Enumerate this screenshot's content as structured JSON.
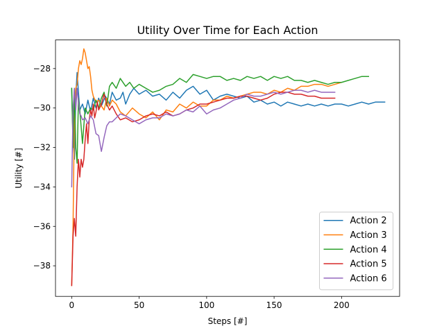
{
  "chart_data": {
    "type": "line",
    "title": "Utility Over Time for Each Action",
    "xlabel": "Steps [#]",
    "ylabel": "Utility [#]",
    "xlim": [
      -12,
      243
    ],
    "ylim": [
      -39.55,
      -26.55
    ],
    "xticks": [
      0,
      50,
      100,
      150,
      200
    ],
    "yticks": [
      -38,
      -36,
      -34,
      -32,
      -30,
      -28
    ],
    "grid": false,
    "legend_position": "lower right",
    "series": [
      {
        "name": "Action 2",
        "color": "#1f77b4",
        "x": [
          0,
          1,
          2,
          3,
          4,
          5,
          6,
          8,
          10,
          12,
          14,
          16,
          18,
          20,
          22,
          25,
          28,
          30,
          33,
          36,
          38,
          40,
          43,
          46,
          50,
          55,
          60,
          65,
          70,
          75,
          80,
          85,
          90,
          95,
          100,
          105,
          110,
          115,
          120,
          125,
          130,
          135,
          140,
          145,
          150,
          155,
          160,
          165,
          170,
          175,
          180,
          185,
          190,
          195,
          200,
          205,
          210,
          215,
          220,
          225,
          230,
          232
        ],
        "y": [
          -29,
          -31.6,
          -32.6,
          -29.4,
          -28.2,
          -29.2,
          -30.1,
          -29.8,
          -30.3,
          -29.6,
          -30.2,
          -29.5,
          -30.0,
          -29.5,
          -29.9,
          -29.4,
          -29.8,
          -29.2,
          -29.6,
          -29.5,
          -29.2,
          -29.8,
          -29.3,
          -29.0,
          -29.3,
          -29.1,
          -29.4,
          -29.3,
          -29.6,
          -29.2,
          -29.5,
          -29.1,
          -28.9,
          -29.3,
          -29.1,
          -29.6,
          -29.4,
          -29.3,
          -29.4,
          -29.5,
          -29.4,
          -29.7,
          -29.6,
          -29.8,
          -29.7,
          -29.9,
          -29.7,
          -29.8,
          -29.9,
          -29.8,
          -29.9,
          -29.8,
          -29.9,
          -29.8,
          -29.8,
          -29.9,
          -29.8,
          -29.7,
          -29.8,
          -29.7,
          -29.7,
          -29.7
        ]
      },
      {
        "name": "Action 3",
        "color": "#ff7f0e",
        "x": [
          0,
          1,
          2,
          3,
          4,
          5,
          6,
          7,
          8,
          9,
          10,
          11,
          12,
          13,
          14,
          15,
          16,
          18,
          20,
          22,
          24,
          26,
          28,
          30,
          33,
          36,
          40,
          45,
          50,
          55,
          60,
          65,
          70,
          75,
          80,
          85,
          90,
          95,
          100,
          105,
          110,
          115,
          120,
          125,
          130,
          135,
          140,
          145,
          150,
          155,
          160,
          165,
          170,
          175,
          180,
          185,
          190,
          195,
          200
        ],
        "y": [
          -39,
          -36.0,
          -30.5,
          -29.0,
          -28.8,
          -28.0,
          -27.6,
          -27.8,
          -27.5,
          -27.0,
          -27.2,
          -27.6,
          -28.0,
          -27.9,
          -28.4,
          -29.1,
          -29.4,
          -29.7,
          -29.6,
          -29.9,
          -30.1,
          -29.5,
          -29.9,
          -29.6,
          -29.8,
          -30.2,
          -30.4,
          -30.0,
          -30.3,
          -30.5,
          -30.2,
          -30.6,
          -30.1,
          -30.2,
          -29.8,
          -30.0,
          -29.7,
          -29.9,
          -29.9,
          -29.6,
          -29.6,
          -29.4,
          -29.5,
          -29.4,
          -29.3,
          -29.2,
          -29.2,
          -29.3,
          -29.1,
          -29.2,
          -29.0,
          -29.1,
          -28.9,
          -28.9,
          -28.8,
          -28.8,
          -28.9,
          -28.8,
          -28.7
        ]
      },
      {
        "name": "Action 4",
        "color": "#2ca02c",
        "x": [
          0,
          1,
          2,
          3,
          4,
          5,
          6,
          8,
          10,
          12,
          14,
          16,
          18,
          20,
          22,
          24,
          26,
          28,
          30,
          33,
          36,
          40,
          43,
          46,
          50,
          55,
          60,
          65,
          70,
          75,
          80,
          85,
          90,
          95,
          100,
          105,
          110,
          115,
          120,
          125,
          130,
          135,
          140,
          145,
          150,
          155,
          160,
          165,
          170,
          175,
          180,
          185,
          190,
          195,
          200,
          205,
          210,
          215,
          220
        ],
        "y": [
          -29,
          -32.0,
          -29.0,
          -32.0,
          -32.8,
          -29.5,
          -30.1,
          -31.8,
          -30.0,
          -30.3,
          -30.0,
          -30.1,
          -29.6,
          -30.0,
          -29.5,
          -29.2,
          -29.9,
          -28.9,
          -28.7,
          -29.0,
          -28.5,
          -28.9,
          -28.7,
          -29.0,
          -28.8,
          -29.0,
          -29.2,
          -29.1,
          -28.9,
          -28.8,
          -28.5,
          -28.7,
          -28.3,
          -28.4,
          -28.5,
          -28.4,
          -28.4,
          -28.6,
          -28.5,
          -28.6,
          -28.4,
          -28.5,
          -28.4,
          -28.6,
          -28.4,
          -28.5,
          -28.4,
          -28.6,
          -28.6,
          -28.7,
          -28.6,
          -28.7,
          -28.8,
          -28.7,
          -28.7,
          -28.6,
          -28.5,
          -28.4,
          -28.4
        ]
      },
      {
        "name": "Action 5",
        "color": "#d62728",
        "x": [
          0,
          1,
          2,
          3,
          4,
          5,
          6,
          7,
          8,
          9,
          10,
          11,
          12,
          13,
          14,
          15,
          16,
          17,
          18,
          19,
          20,
          22,
          24,
          26,
          28,
          30,
          33,
          36,
          40,
          45,
          50,
          55,
          60,
          65,
          70,
          75,
          80,
          85,
          90,
          95,
          100,
          105,
          110,
          115,
          120,
          125,
          130,
          135,
          140,
          145,
          150,
          155,
          160,
          165,
          170,
          175,
          180,
          185,
          190,
          195
        ],
        "y": [
          -39,
          -36.5,
          -35.6,
          -36.5,
          -34.0,
          -32.6,
          -33.5,
          -32.6,
          -33.0,
          -32.6,
          -31.6,
          -30.8,
          -31.8,
          -30.6,
          -30.1,
          -30.4,
          -29.8,
          -30.5,
          -30.2,
          -29.7,
          -30.1,
          -29.8,
          -29.3,
          -29.8,
          -30.1,
          -29.9,
          -30.3,
          -30.6,
          -30.5,
          -30.7,
          -30.6,
          -30.4,
          -30.3,
          -30.4,
          -30.2,
          -30.4,
          -30.3,
          -30.1,
          -30.0,
          -29.8,
          -29.8,
          -29.7,
          -29.6,
          -29.5,
          -29.5,
          -29.4,
          -29.4,
          -29.5,
          -29.6,
          -29.5,
          -29.3,
          -29.2,
          -29.2,
          -29.3,
          -29.3,
          -29.4,
          -29.4,
          -29.5,
          -29.5,
          -29.5
        ]
      },
      {
        "name": "Action 6",
        "color": "#9467bd",
        "x": [
          0,
          1,
          2,
          3,
          4,
          5,
          6,
          7,
          8,
          10,
          12,
          14,
          16,
          18,
          20,
          22,
          24,
          26,
          28,
          30,
          33,
          36,
          40,
          45,
          50,
          55,
          60,
          65,
          70,
          75,
          80,
          85,
          90,
          95,
          100,
          105,
          110,
          115,
          120,
          125,
          130,
          135,
          140,
          145,
          150,
          155,
          160,
          165,
          170,
          175,
          180,
          185,
          190,
          195
        ],
        "y": [
          -34,
          -30.1,
          -29.0,
          -30.1,
          -29.0,
          -29.7,
          -30.3,
          -30.4,
          -30.6,
          -30.5,
          -30.8,
          -30.4,
          -30.6,
          -31.3,
          -31.4,
          -32.2,
          -31.5,
          -30.9,
          -30.7,
          -30.7,
          -30.5,
          -30.3,
          -30.4,
          -30.6,
          -30.8,
          -30.6,
          -30.5,
          -30.5,
          -30.3,
          -30.4,
          -30.3,
          -30.1,
          -30.2,
          -29.9,
          -30.3,
          -30.1,
          -30.0,
          -29.8,
          -29.6,
          -29.5,
          -29.3,
          -29.4,
          -29.4,
          -29.3,
          -29.2,
          -29.3,
          -29.2,
          -29.1,
          -29.1,
          -29.2,
          -29.1,
          -29.2,
          -29.2,
          -29.2
        ]
      }
    ]
  }
}
